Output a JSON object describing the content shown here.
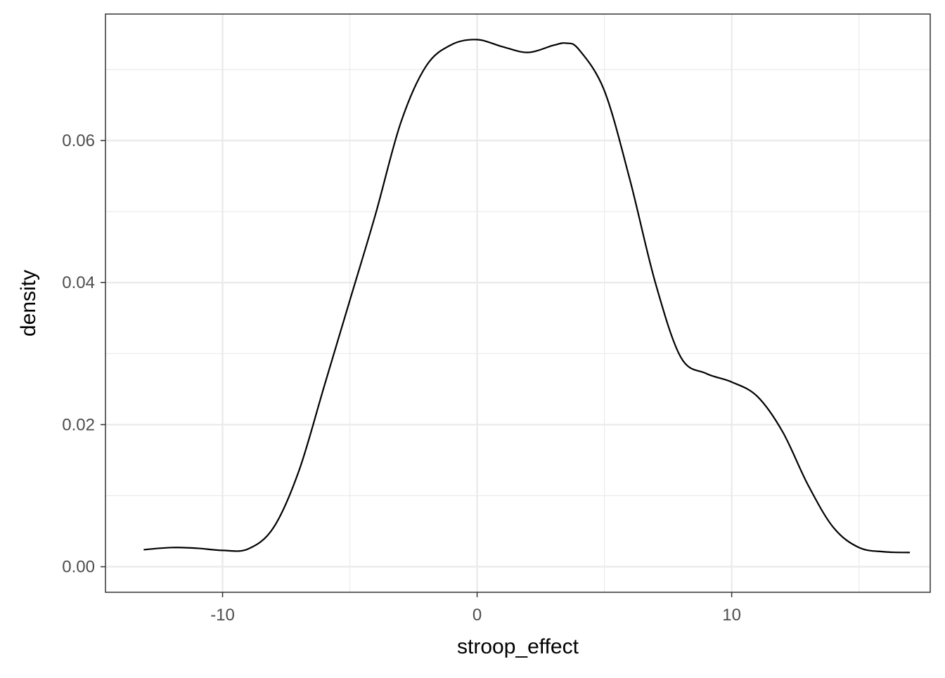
{
  "chart_data": {
    "type": "line",
    "title": "",
    "xlabel": "stroop_effect",
    "ylabel": "density",
    "xlim": [
      -14.6,
      17.8
    ],
    "ylim": [
      -0.0036,
      0.0778
    ],
    "x_ticks": [
      -10,
      0,
      10
    ],
    "x_tick_labels": [
      "-10",
      "0",
      "10"
    ],
    "y_ticks": [
      0.0,
      0.02,
      0.04,
      0.06
    ],
    "y_tick_labels": [
      "0.00",
      "0.02",
      "0.04",
      "0.06"
    ],
    "grid": true,
    "legend": "none",
    "series": [
      {
        "x": [
          -13.1,
          -12.0,
          -11.0,
          -10.0,
          -9.0,
          -8.0,
          -7.0,
          -6.0,
          -5.0,
          -4.0,
          -3.0,
          -2.0,
          -1.0,
          0.0,
          1.0,
          2.0,
          3.0,
          3.5,
          4.0,
          5.0,
          6.0,
          7.0,
          8.0,
          9.0,
          10.0,
          11.0,
          12.0,
          13.0,
          14.0,
          15.0,
          16.0,
          17.0
        ],
        "y": [
          0.0024,
          0.0027,
          0.0026,
          0.0023,
          0.0025,
          0.0055,
          0.0135,
          0.0255,
          0.0375,
          0.0495,
          0.0625,
          0.0705,
          0.0735,
          0.0742,
          0.0732,
          0.0724,
          0.0734,
          0.0737,
          0.0728,
          0.067,
          0.0545,
          0.04,
          0.0295,
          0.0272,
          0.026,
          0.024,
          0.019,
          0.0115,
          0.0055,
          0.0027,
          0.0021,
          0.002
        ]
      }
    ]
  }
}
